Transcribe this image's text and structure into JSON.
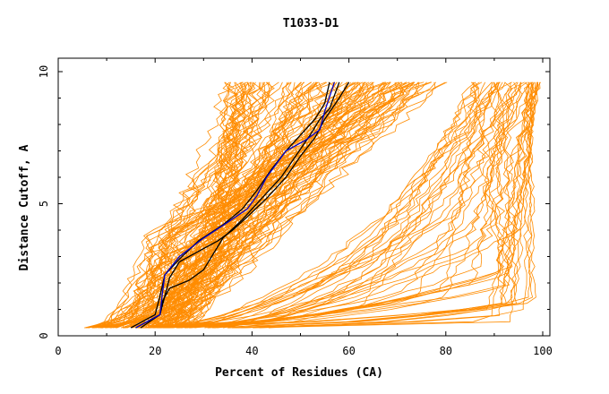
{
  "chart_data": {
    "type": "line",
    "title": "T1033-D1",
    "xlabel": "Percent of Residues (CA)",
    "ylabel": "Distance Cutoff, A",
    "xlim": [
      0,
      100
    ],
    "ylim": [
      0,
      10
    ],
    "xticks": [
      0,
      20,
      40,
      60,
      80,
      100
    ],
    "yticks": [
      0,
      5,
      10
    ],
    "grid": false,
    "legend": "none",
    "colors": {
      "background": "#ffffff",
      "axis": "#000000",
      "models": "#ff8c00",
      "highlight_black": "#000000",
      "highlight_blue": "#0000cc"
    },
    "highlighted_series": [
      {
        "color": "#000000",
        "points": [
          [
            16,
            0.3
          ],
          [
            21,
            0.8
          ],
          [
            22,
            1.5
          ],
          [
            23,
            2.2
          ],
          [
            25,
            2.8
          ],
          [
            29,
            3.2
          ],
          [
            33,
            3.6
          ],
          [
            36,
            4.0
          ],
          [
            39,
            4.5
          ],
          [
            43,
            5.2
          ],
          [
            47,
            6.0
          ],
          [
            50,
            6.8
          ],
          [
            53,
            7.5
          ],
          [
            55,
            8.2
          ],
          [
            58,
            9.0
          ],
          [
            60,
            9.6
          ]
        ]
      },
      {
        "color": "#000000",
        "points": [
          [
            17,
            0.3
          ],
          [
            21,
            0.8
          ],
          [
            21.5,
            1.3
          ],
          [
            23,
            1.8
          ],
          [
            27,
            2.1
          ],
          [
            30,
            2.5
          ],
          [
            32,
            3.1
          ],
          [
            34,
            3.7
          ],
          [
            38,
            4.4
          ],
          [
            42,
            5.2
          ],
          [
            46,
            6.0
          ],
          [
            49,
            6.8
          ],
          [
            52,
            7.6
          ],
          [
            54,
            8.2
          ],
          [
            56,
            8.6
          ],
          [
            58,
            9.6
          ]
        ]
      },
      {
        "color": "#000000",
        "points": [
          [
            15,
            0.3
          ],
          [
            20,
            0.8
          ],
          [
            21,
            1.5
          ],
          [
            22,
            2.3
          ],
          [
            25,
            2.9
          ],
          [
            29,
            3.6
          ],
          [
            34,
            4.2
          ],
          [
            38,
            4.8
          ],
          [
            41,
            5.5
          ],
          [
            44,
            6.3
          ],
          [
            47,
            7.0
          ],
          [
            50,
            7.6
          ],
          [
            53,
            8.2
          ],
          [
            55,
            8.8
          ],
          [
            56,
            9.6
          ]
        ]
      },
      {
        "color": "#0000cc",
        "points": [
          [
            16,
            0.3
          ],
          [
            21,
            0.8
          ],
          [
            21.5,
            1.6
          ],
          [
            22,
            2.3
          ],
          [
            25,
            3.0
          ],
          [
            30,
            3.7
          ],
          [
            35,
            4.3
          ],
          [
            39,
            4.8
          ],
          [
            41,
            5.3
          ],
          [
            43,
            6.0
          ],
          [
            45,
            6.5
          ],
          [
            47,
            7.0
          ],
          [
            51,
            7.4
          ],
          [
            54,
            7.8
          ],
          [
            55,
            8.5
          ],
          [
            57,
            9.6
          ]
        ]
      }
    ]
  }
}
